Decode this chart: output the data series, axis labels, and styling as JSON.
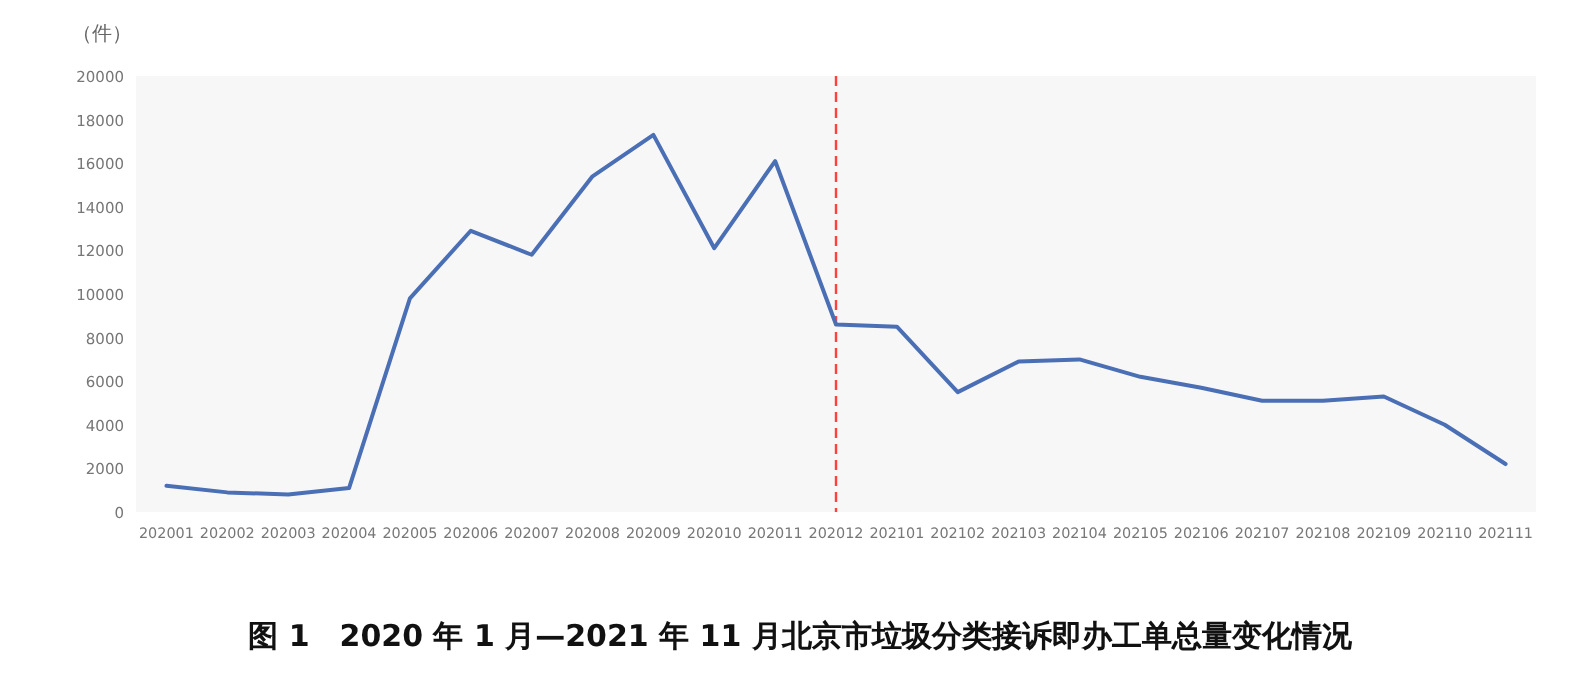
{
  "chart_data": {
    "type": "line",
    "title": "图 1　2020 年 1 月—2021 年 11 月北京市垃圾分类接诉即办工单总量变化情况",
    "ylabel": "（件）",
    "categories": [
      "202001",
      "202002",
      "202003",
      "202004",
      "202005",
      "202006",
      "202007",
      "202008",
      "202009",
      "202010",
      "202011",
      "202012",
      "202101",
      "202102",
      "202103",
      "202104",
      "202105",
      "202106",
      "202107",
      "202108",
      "202109",
      "202110",
      "202111"
    ],
    "series": [
      {
        "color": "#4a6fb5",
        "values": [
          1200,
          900,
          800,
          1100,
          9800,
          12900,
          11800,
          15400,
          17300,
          12100,
          16100,
          8600,
          8500,
          5500,
          6900,
          7000,
          6200,
          5700,
          5100,
          5100,
          5300,
          4000,
          2200
        ]
      }
    ],
    "ylim": [
      0,
      20000
    ],
    "yticks": [
      0,
      2000,
      4000,
      6000,
      8000,
      10000,
      12000,
      14000,
      16000,
      18000,
      20000
    ],
    "ref_lines": [
      {
        "axis": "x",
        "value": "202012",
        "color": "#ff4040",
        "line_style": "dashed"
      }
    ],
    "marker": "none",
    "line_style": "solid"
  }
}
